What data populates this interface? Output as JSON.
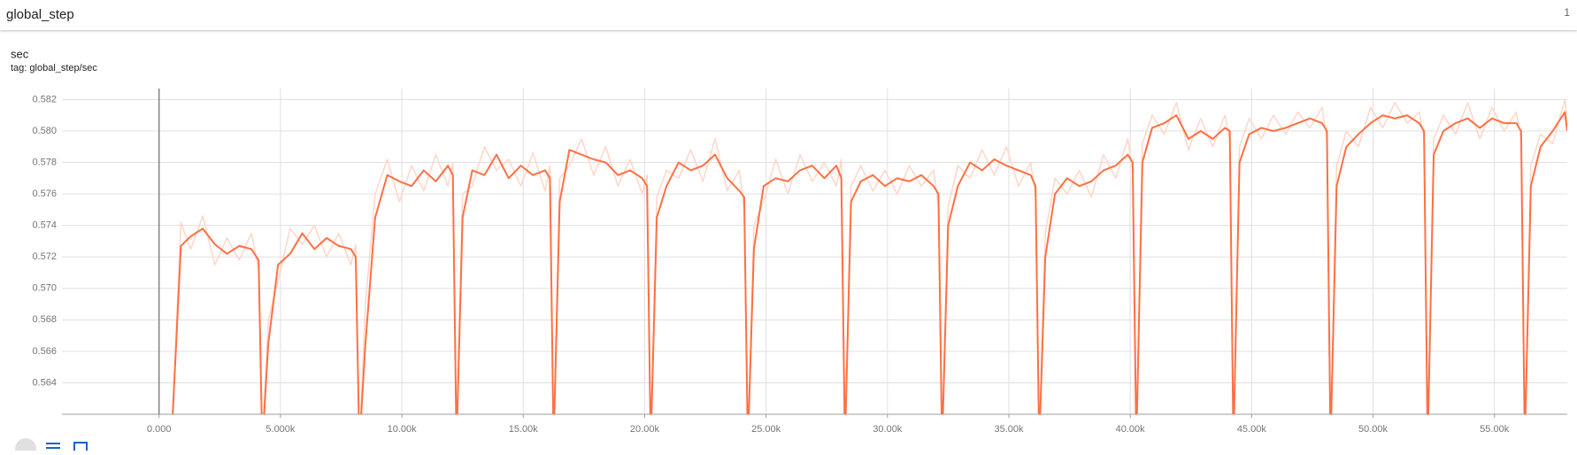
{
  "header": {
    "title": "global_step",
    "count": "1"
  },
  "chart_data": {
    "type": "line",
    "title": "sec",
    "subtitle": "tag: global_step/sec",
    "x": [
      500,
      900,
      1300,
      1800,
      2300,
      2800,
      3300,
      3800,
      4100,
      4250,
      4500,
      4900,
      5400,
      5900,
      6400,
      6900,
      7400,
      7900,
      8100,
      8250,
      8500,
      8900,
      9400,
      9900,
      10400,
      10900,
      11400,
      11900,
      12100,
      12250,
      12500,
      12900,
      13400,
      13900,
      14400,
      14900,
      15400,
      15900,
      16100,
      16250,
      16500,
      16900,
      17400,
      17900,
      18400,
      18900,
      19400,
      19900,
      20100,
      20250,
      20500,
      20900,
      21400,
      21900,
      22400,
      22900,
      23400,
      23900,
      24100,
      24250,
      24500,
      24900,
      25400,
      25900,
      26400,
      26900,
      27400,
      27900,
      28100,
      28250,
      28500,
      28900,
      29400,
      29900,
      30400,
      30900,
      31400,
      31900,
      32100,
      32250,
      32500,
      32900,
      33400,
      33900,
      34400,
      34900,
      35400,
      35900,
      36100,
      36250,
      36500,
      36900,
      37400,
      37900,
      38400,
      38900,
      39400,
      39900,
      40100,
      40250,
      40500,
      40900,
      41400,
      41900,
      42400,
      42900,
      43400,
      43900,
      44100,
      44250,
      44500,
      44900,
      45400,
      45900,
      46400,
      46900,
      47400,
      47900,
      48100,
      48250,
      48500,
      48900,
      49400,
      49900,
      50400,
      50900,
      51400,
      51900,
      52100,
      52250,
      52500,
      52900,
      53400,
      53900,
      54400,
      54900,
      55400,
      55900,
      56100,
      56250,
      56500,
      56900,
      57400,
      57900,
      58000
    ],
    "series": [
      {
        "color": "#ffd6c9",
        "values": [
          0.56,
          0.5742,
          0.5725,
          0.5746,
          0.5715,
          0.5732,
          0.5718,
          0.5735,
          0.5712,
          0.56,
          0.568,
          0.5705,
          0.5738,
          0.5728,
          0.574,
          0.572,
          0.5735,
          0.5715,
          0.5728,
          0.56,
          0.569,
          0.576,
          0.5782,
          0.5755,
          0.5778,
          0.5762,
          0.5785,
          0.5765,
          0.578,
          0.56,
          0.576,
          0.5765,
          0.579,
          0.5775,
          0.5782,
          0.5765,
          0.5786,
          0.5762,
          0.5778,
          0.56,
          0.577,
          0.5778,
          0.5795,
          0.5772,
          0.579,
          0.5765,
          0.5782,
          0.576,
          0.5772,
          0.56,
          0.5758,
          0.5775,
          0.577,
          0.5788,
          0.5768,
          0.5795,
          0.5762,
          0.5775,
          0.575,
          0.56,
          0.574,
          0.5755,
          0.5782,
          0.576,
          0.5785,
          0.5768,
          0.578,
          0.5765,
          0.5782,
          0.56,
          0.5765,
          0.5778,
          0.5762,
          0.5775,
          0.576,
          0.5778,
          0.5765,
          0.5775,
          0.5752,
          0.56,
          0.5752,
          0.5778,
          0.577,
          0.5788,
          0.5772,
          0.579,
          0.5765,
          0.578,
          0.5758,
          0.56,
          0.5735,
          0.577,
          0.576,
          0.5775,
          0.5758,
          0.5785,
          0.577,
          0.5795,
          0.5775,
          0.56,
          0.5792,
          0.581,
          0.5798,
          0.5818,
          0.5788,
          0.5808,
          0.579,
          0.581,
          0.5795,
          0.56,
          0.579,
          0.5808,
          0.5795,
          0.581,
          0.5798,
          0.5812,
          0.5802,
          0.5815,
          0.5795,
          0.56,
          0.5778,
          0.58,
          0.579,
          0.5815,
          0.5802,
          0.5818,
          0.5805,
          0.5812,
          0.5796,
          0.56,
          0.5795,
          0.581,
          0.5798,
          0.5818,
          0.5795,
          0.5815,
          0.58,
          0.5812,
          0.5795,
          0.56,
          0.5778,
          0.5798,
          0.5792,
          0.582,
          0.5805
        ]
      },
      {
        "color": "#ff7043",
        "values": [
          0.56,
          0.5727,
          0.5733,
          0.5738,
          0.5728,
          0.5722,
          0.5727,
          0.5725,
          0.5718,
          0.56,
          0.5665,
          0.5715,
          0.5722,
          0.5735,
          0.5725,
          0.5732,
          0.5727,
          0.5725,
          0.572,
          0.56,
          0.5665,
          0.5745,
          0.5772,
          0.5768,
          0.5765,
          0.5775,
          0.5768,
          0.5778,
          0.5772,
          0.56,
          0.5745,
          0.5775,
          0.5772,
          0.5785,
          0.577,
          0.5778,
          0.5772,
          0.5775,
          0.577,
          0.56,
          0.5755,
          0.5788,
          0.5785,
          0.5782,
          0.578,
          0.5772,
          0.5775,
          0.577,
          0.5765,
          0.56,
          0.5745,
          0.5765,
          0.578,
          0.5775,
          0.5778,
          0.5785,
          0.577,
          0.5762,
          0.5758,
          0.56,
          0.5725,
          0.5765,
          0.577,
          0.5768,
          0.5775,
          0.5778,
          0.577,
          0.5778,
          0.577,
          0.56,
          0.5755,
          0.5768,
          0.5772,
          0.5765,
          0.577,
          0.5768,
          0.5772,
          0.5765,
          0.576,
          0.56,
          0.574,
          0.5765,
          0.578,
          0.5775,
          0.5782,
          0.5778,
          0.5775,
          0.5772,
          0.5765,
          0.56,
          0.572,
          0.576,
          0.577,
          0.5765,
          0.5768,
          0.5775,
          0.5778,
          0.5785,
          0.578,
          0.56,
          0.578,
          0.5802,
          0.5805,
          0.581,
          0.5795,
          0.58,
          0.5795,
          0.5802,
          0.58,
          0.56,
          0.578,
          0.5798,
          0.5802,
          0.58,
          0.5802,
          0.5805,
          0.5808,
          0.5805,
          0.58,
          0.56,
          0.5765,
          0.579,
          0.5798,
          0.5805,
          0.581,
          0.5808,
          0.581,
          0.5805,
          0.58,
          0.56,
          0.5785,
          0.58,
          0.5805,
          0.5808,
          0.5802,
          0.5808,
          0.5805,
          0.5805,
          0.58,
          0.56,
          0.5765,
          0.579,
          0.58,
          0.5812,
          0.58
        ]
      }
    ],
    "xlim": [
      -4000,
      58000
    ],
    "xticks": [
      {
        "value": 0,
        "label": "0.000"
      },
      {
        "value": 5000,
        "label": "5.000k"
      },
      {
        "value": 10000,
        "label": "10.00k"
      },
      {
        "value": 15000,
        "label": "15.00k"
      },
      {
        "value": 20000,
        "label": "20.00k"
      },
      {
        "value": 25000,
        "label": "25.00k"
      },
      {
        "value": 30000,
        "label": "30.00k"
      },
      {
        "value": 35000,
        "label": "35.00k"
      },
      {
        "value": 40000,
        "label": "40.00k"
      },
      {
        "value": 45000,
        "label": "45.00k"
      },
      {
        "value": 50000,
        "label": "50.00k"
      },
      {
        "value": 55000,
        "label": "55.00k"
      }
    ],
    "ylim": [
      0.562,
      0.5827
    ],
    "yticks": [
      0.564,
      0.566,
      0.568,
      {
        "value": 0.57,
        "label": "0.570"
      },
      0.572,
      0.574,
      0.576,
      0.578,
      {
        "value": 0.58,
        "label": "0.580"
      },
      0.582
    ],
    "grid": true
  }
}
